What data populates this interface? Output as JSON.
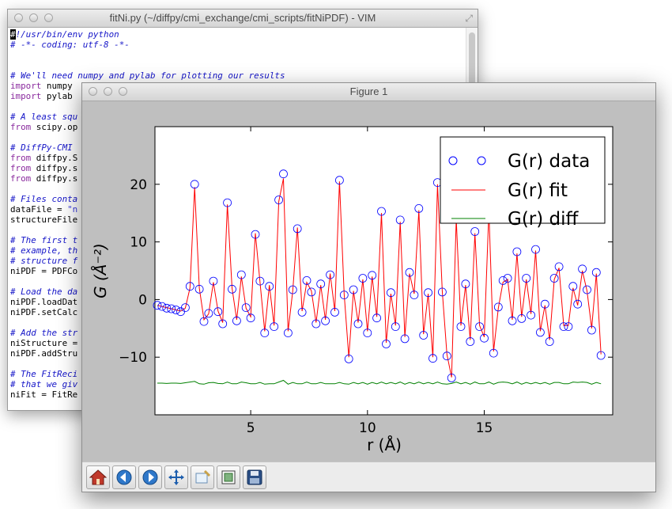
{
  "vim": {
    "title": "fitNi.py (~/diffpy/cmi_exchange/cmi_scripts/fitNiPDF) - VIM",
    "lines": [
      [
        {
          "t": "#",
          "c": "cursor"
        },
        {
          "t": "!/usr/bin/env python",
          "c": "c-comment"
        }
      ],
      [
        {
          "t": "# -*- coding: utf-8 -*-",
          "c": "c-comment"
        }
      ],
      [],
      [],
      [
        {
          "t": "# We'll need numpy and pylab for plotting our results",
          "c": "c-comment"
        }
      ],
      [
        {
          "t": "import",
          "c": "c-keyword"
        },
        {
          "t": " numpy"
        }
      ],
      [
        {
          "t": "import",
          "c": "c-keyword"
        },
        {
          "t": " pylab"
        }
      ],
      [],
      [
        {
          "t": "# A least squ",
          "c": "c-comment"
        }
      ],
      [
        {
          "t": "from",
          "c": "c-keyword"
        },
        {
          "t": " scipy.op"
        }
      ],
      [],
      [
        {
          "t": "# DiffPy-CMI",
          "c": "c-comment"
        }
      ],
      [
        {
          "t": "from",
          "c": "c-keyword"
        },
        {
          "t": " diffpy.S"
        }
      ],
      [
        {
          "t": "from",
          "c": "c-keyword"
        },
        {
          "t": " diffpy.s"
        }
      ],
      [
        {
          "t": "from",
          "c": "c-keyword"
        },
        {
          "t": " diffpy.s"
        }
      ],
      [],
      [
        {
          "t": "# Files conta",
          "c": "c-comment"
        }
      ],
      [
        {
          "t": "dataFile = "
        },
        {
          "t": "\"n",
          "c": "c-string"
        }
      ],
      [
        {
          "t": "structureFile"
        }
      ],
      [],
      [
        {
          "t": "# The first t",
          "c": "c-comment"
        }
      ],
      [
        {
          "t": "# example, th",
          "c": "c-comment"
        }
      ],
      [
        {
          "t": "# structure f",
          "c": "c-comment"
        }
      ],
      [
        {
          "t": "niPDF = PDFCo"
        }
      ],
      [],
      [
        {
          "t": "# Load the da",
          "c": "c-comment"
        }
      ],
      [
        {
          "t": "niPDF.loadDat"
        }
      ],
      [
        {
          "t": "niPDF.setCalc"
        }
      ],
      [],
      [
        {
          "t": "# Add the str",
          "c": "c-comment"
        }
      ],
      [
        {
          "t": "niStructure ="
        }
      ],
      [
        {
          "t": "niPDF.addStru"
        }
      ],
      [],
      [
        {
          "t": "# The FitReci",
          "c": "c-comment"
        }
      ],
      [
        {
          "t": "# that we giv",
          "c": "c-comment"
        }
      ],
      [
        {
          "t": "niFit = FitRe"
        }
      ]
    ]
  },
  "figure": {
    "title": "Figure 1"
  },
  "toolbar": {
    "buttons": [
      "home-icon",
      "back-arrow-icon",
      "forward-arrow-icon",
      "pan-move-icon",
      "zoom-rect-icon",
      "subplots-config-icon",
      "save-floppy-icon"
    ]
  },
  "chart_data": {
    "type": "line",
    "xlabel": "r  (Å)",
    "ylabel": "G  (Å⁻²)",
    "xlim": [
      0.9,
      20.5
    ],
    "ylim": [
      -20,
      30
    ],
    "xticks": [
      5,
      10,
      15
    ],
    "yticks": [
      -10,
      0,
      10,
      20
    ],
    "legend_position": "top-right",
    "series": [
      {
        "name": "G(r) data",
        "style": "circles",
        "color": "#0000ff"
      },
      {
        "name": "G(r) fit",
        "style": "line",
        "color": "#ff0000"
      },
      {
        "name": "G(r) diff",
        "style": "line",
        "color": "#008000",
        "offset": -14.5
      }
    ],
    "x": [
      1.0,
      1.2,
      1.4,
      1.6,
      1.8,
      2.0,
      2.2,
      2.4,
      2.6,
      2.8,
      3.0,
      3.2,
      3.4,
      3.6,
      3.8,
      4.0,
      4.2,
      4.4,
      4.6,
      4.8,
      5.0,
      5.2,
      5.4,
      5.6,
      5.8,
      6.0,
      6.2,
      6.4,
      6.6,
      6.8,
      7.0,
      7.2,
      7.4,
      7.6,
      7.8,
      8.0,
      8.2,
      8.4,
      8.6,
      8.8,
      9.0,
      9.2,
      9.4,
      9.6,
      9.8,
      10.0,
      10.2,
      10.4,
      10.6,
      10.8,
      11.0,
      11.2,
      11.4,
      11.6,
      11.8,
      12.0,
      12.2,
      12.4,
      12.6,
      12.8,
      13.0,
      13.2,
      13.4,
      13.6,
      13.8,
      14.0,
      14.2,
      14.4,
      14.6,
      14.8,
      15.0,
      15.2,
      15.4,
      15.6,
      15.8,
      16.0,
      16.2,
      16.4,
      16.6,
      16.8,
      17.0,
      17.2,
      17.4,
      17.6,
      17.8,
      18.0,
      18.2,
      18.4,
      18.6,
      18.8,
      19.0,
      19.2,
      19.4,
      19.6,
      19.8,
      20.0
    ],
    "fit": [
      -1.0,
      -1.2,
      -1.4,
      -1.6,
      -1.8,
      -2.0,
      -1.5,
      2.0,
      19.5,
      2.0,
      -3.5,
      -2.5,
      3.0,
      -2.0,
      -4.0,
      16.5,
      2.0,
      -3.5,
      4.0,
      -1.5,
      -3.0,
      11.5,
      3.0,
      -5.5,
      2.5,
      -4.5,
      17.0,
      21.0,
      -5.5,
      1.5,
      12.5,
      -2.0,
      3.0,
      1.5,
      -4.0,
      2.5,
      -3.5,
      4.5,
      -2.0,
      20.5,
      1.0,
      -10.0,
      1.5,
      -4.0,
      3.5,
      -5.5,
      4.0,
      -3.0,
      15.0,
      -7.5,
      1.0,
      -4.5,
      13.5,
      -6.5,
      4.5,
      1.0,
      15.5,
      -6.0,
      1.0,
      -10.0,
      20.0,
      1.5,
      -9.5,
      -13.5,
      14.0,
      -4.5,
      2.5,
      -7.0,
      11.5,
      -4.5,
      -6.5,
      15.5,
      -9.0,
      -1.5,
      3.0,
      3.5,
      -3.5,
      8.0,
      -3.0,
      3.5,
      -2.5,
      8.5,
      -5.5,
      -1.0,
      -7.0,
      3.5,
      5.5,
      -4.5,
      -4.5,
      2.0,
      -1.0,
      5.0,
      1.5,
      -5.0,
      4.5,
      -9.5
    ],
    "data": [
      -1.0,
      -1.2,
      -1.5,
      -1.6,
      -1.8,
      -2.1,
      -1.4,
      2.3,
      20.0,
      1.8,
      -3.8,
      -2.4,
      3.2,
      -2.1,
      -4.2,
      16.8,
      1.8,
      -3.7,
      4.3,
      -1.4,
      -3.2,
      11.3,
      3.2,
      -5.8,
      2.3,
      -4.7,
      17.3,
      21.8,
      -5.8,
      1.7,
      12.3,
      -2.2,
      3.3,
      1.3,
      -4.2,
      2.7,
      -3.7,
      4.3,
      -2.2,
      20.7,
      0.8,
      -10.3,
      1.7,
      -4.2,
      3.7,
      -5.8,
      4.2,
      -3.2,
      15.3,
      -7.7,
      1.2,
      -4.7,
      13.8,
      -6.8,
      4.7,
      0.8,
      15.8,
      -6.2,
      1.2,
      -10.2,
      20.3,
      1.3,
      -9.8,
      -13.6,
      14.3,
      -4.7,
      2.7,
      -7.3,
      11.8,
      -4.7,
      -6.7,
      15.8,
      -9.3,
      -1.3,
      3.3,
      3.7,
      -3.7,
      8.3,
      -3.3,
      3.7,
      -2.7,
      8.7,
      -5.7,
      -0.8,
      -7.3,
      3.7,
      5.7,
      -4.7,
      -4.7,
      2.3,
      -0.8,
      5.3,
      1.7,
      -5.3,
      4.7,
      -9.7
    ]
  }
}
